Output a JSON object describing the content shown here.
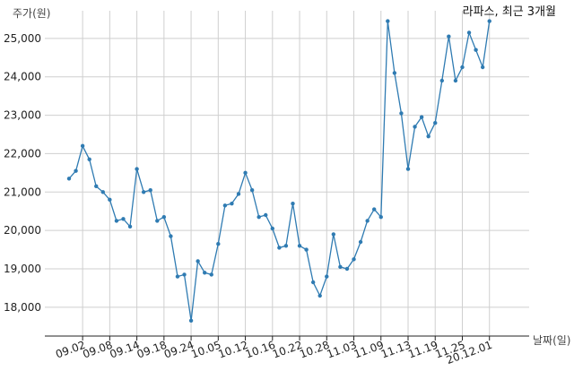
{
  "chart_data": {
    "type": "line",
    "title": "라파스, 최근 3개월",
    "ylabel": "주가(원)",
    "xlabel": "날짜(일)",
    "ylim": [
      17250,
      26000
    ],
    "yticks": [
      18000,
      19000,
      20000,
      21000,
      22000,
      23000,
      24000,
      25000
    ],
    "ytick_labels": [
      "18,000",
      "19,000",
      "20,000",
      "21,000",
      "22,000",
      "23,000",
      "24,000",
      "25,000"
    ],
    "x_tick_labels": [
      {
        "label": "09.02",
        "i": 3
      },
      {
        "label": "09.08",
        "i": 7
      },
      {
        "label": "09.14",
        "i": 11
      },
      {
        "label": "09.18",
        "i": 15
      },
      {
        "label": "09.24",
        "i": 19
      },
      {
        "label": "10.05",
        "i": 23
      },
      {
        "label": "10.12",
        "i": 27
      },
      {
        "label": "10.16",
        "i": 31
      },
      {
        "label": "10.22",
        "i": 35
      },
      {
        "label": "10.28",
        "i": 39
      },
      {
        "label": "11.03",
        "i": 43
      },
      {
        "label": "11.09",
        "i": 47
      },
      {
        "label": "11.13",
        "i": 51
      },
      {
        "label": "11.19",
        "i": 55
      },
      {
        "label": "11.25",
        "i": 59
      },
      {
        "label": "20.12.01",
        "i": 63
      }
    ],
    "grid": true,
    "line_color": "#2f7bb2",
    "grid_color": "#cfcfcf",
    "series": [
      {
        "values": [
          21350,
          21550,
          22200,
          21850,
          21150,
          21000,
          20800,
          20250,
          20300,
          20100,
          21600,
          21000,
          21050,
          20250,
          20350,
          19850,
          18800,
          18850,
          17650,
          19200,
          18900,
          18850,
          19650,
          20650,
          20700,
          20950,
          21500,
          21050,
          20350,
          20400,
          20050,
          19550,
          19600,
          20700,
          19600,
          19500,
          18650,
          18300,
          18800,
          19900,
          19050,
          19000,
          19250,
          19700,
          20250,
          20550,
          20350,
          25450,
          24100,
          23050,
          21600,
          22700,
          22950,
          22450,
          22800,
          23900,
          25050,
          23900,
          24250,
          25150,
          24700,
          24250,
          25450
        ]
      }
    ]
  }
}
